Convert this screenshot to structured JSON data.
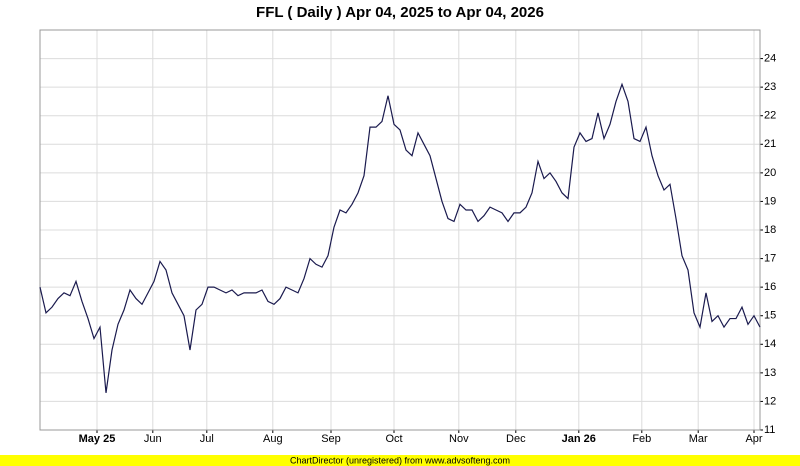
{
  "chart_data": {
    "type": "line",
    "title": "FFL ( Daily ) Apr 04, 2025 to Apr 04, 2026",
    "footer": "ChartDirector (unregistered) from www.advsofteng.com",
    "series": [
      {
        "name": "FFL",
        "color": "#1a1a4e",
        "values": [
          16.0,
          15.1,
          15.3,
          15.6,
          15.8,
          15.7,
          16.2,
          15.5,
          14.9,
          14.2,
          14.6,
          12.3,
          13.8,
          14.7,
          15.2,
          15.9,
          15.6,
          15.4,
          15.8,
          16.2,
          16.9,
          16.6,
          15.8,
          15.4,
          15.0,
          13.8,
          15.2,
          15.4,
          16.0,
          16.0,
          15.9,
          15.8,
          15.9,
          15.7,
          15.8,
          15.8,
          15.8,
          15.9,
          15.5,
          15.4,
          15.6,
          16.0,
          15.9,
          15.8,
          16.3,
          17.0,
          16.8,
          16.7,
          17.1,
          18.1,
          18.7,
          18.6,
          18.9,
          19.3,
          19.9,
          21.6,
          21.6,
          21.8,
          22.7,
          21.7,
          21.5,
          20.8,
          20.6,
          21.4,
          21.0,
          20.6,
          19.8,
          19.0,
          18.4,
          18.3,
          18.9,
          18.7,
          18.7,
          18.3,
          18.5,
          18.8,
          18.7,
          18.6,
          18.3,
          18.6,
          18.6,
          18.8,
          19.3,
          20.4,
          19.8,
          20.0,
          19.7,
          19.3,
          19.1,
          20.9,
          21.4,
          21.1,
          21.2,
          22.1,
          21.2,
          21.7,
          22.5,
          23.1,
          22.5,
          21.2,
          21.1,
          21.6,
          20.6,
          19.9,
          19.4,
          19.6,
          18.4,
          17.1,
          16.6,
          15.1,
          14.6,
          15.8,
          14.8,
          15.0,
          14.6,
          14.9,
          14.9,
          15.3,
          14.7,
          15.0,
          14.6
        ]
      }
    ],
    "xlim": [
      0,
      120
    ],
    "xticks": [
      {
        "value": 9.5,
        "label": "May 25"
      },
      {
        "value": 18.8,
        "label": "Jun"
      },
      {
        "value": 27.8,
        "label": "Jul"
      },
      {
        "value": 38.8,
        "label": "Aug"
      },
      {
        "value": 48.5,
        "label": "Sep"
      },
      {
        "value": 59,
        "label": "Oct"
      },
      {
        "value": 69.8,
        "label": "Nov"
      },
      {
        "value": 79.3,
        "label": "Dec"
      },
      {
        "value": 89.8,
        "label": "Jan 26"
      },
      {
        "value": 100.3,
        "label": "Feb"
      },
      {
        "value": 109.7,
        "label": "Mar"
      },
      {
        "value": 119,
        "label": "Apr"
      }
    ],
    "ylim": [
      11,
      25
    ],
    "yticks": [
      11,
      12,
      13,
      14,
      15,
      16,
      17,
      18,
      19,
      20,
      21,
      22,
      23,
      24
    ],
    "grid": true
  }
}
